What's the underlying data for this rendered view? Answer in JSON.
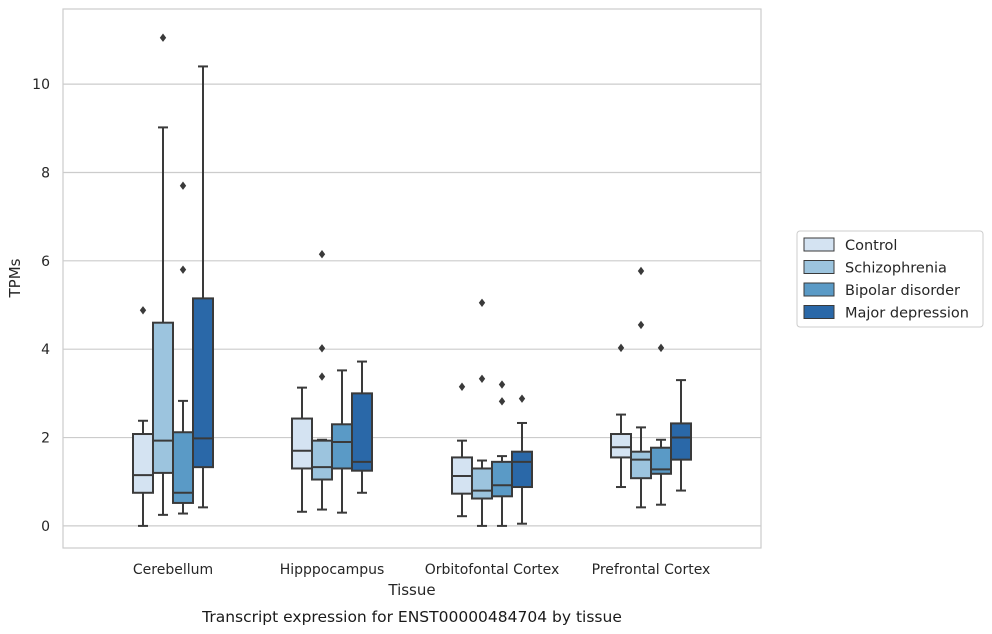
{
  "chart_data": {
    "type": "boxplot",
    "caption": "Transcript expression for ENST00000484704 by tissue",
    "xlabel": "Tissue",
    "ylabel": "TPMs",
    "ylim": [
      -0.5,
      11.7
    ],
    "yticks": [
      0,
      2,
      4,
      6,
      8,
      10
    ],
    "grid": true,
    "legend_position": "right",
    "categories": [
      "Cerebellum",
      "Hipppocampus",
      "Orbitofontal Cortex",
      "Prefrontal Cortex"
    ],
    "series": [
      {
        "name": "Control",
        "color": "#d4e3f2",
        "boxes": [
          {
            "min": 0.0,
            "q1": 0.75,
            "median": 1.15,
            "q3": 2.08,
            "max": 2.38,
            "outliers": [
              4.88
            ]
          },
          {
            "min": 0.32,
            "q1": 1.3,
            "median": 1.7,
            "q3": 2.43,
            "max": 3.13,
            "outliers": []
          },
          {
            "min": 0.22,
            "q1": 0.73,
            "median": 1.13,
            "q3": 1.55,
            "max": 1.93,
            "outliers": [
              3.15
            ]
          },
          {
            "min": 0.88,
            "q1": 1.55,
            "median": 1.78,
            "q3": 2.08,
            "max": 2.52,
            "outliers": [
              4.03
            ]
          }
        ]
      },
      {
        "name": "Schizophrenia",
        "color": "#9cc4de",
        "boxes": [
          {
            "min": 0.25,
            "q1": 1.2,
            "median": 1.93,
            "q3": 4.6,
            "max": 9.02,
            "outliers": [
              11.05
            ]
          },
          {
            "min": 0.37,
            "q1": 1.05,
            "median": 1.33,
            "q3": 1.93,
            "max": 1.95,
            "outliers": [
              6.15,
              4.02,
              3.38
            ]
          },
          {
            "min": 0.0,
            "q1": 0.62,
            "median": 0.8,
            "q3": 1.3,
            "max": 1.48,
            "outliers": [
              5.05,
              3.33
            ]
          },
          {
            "min": 0.42,
            "q1": 1.08,
            "median": 1.5,
            "q3": 1.68,
            "max": 2.23,
            "outliers": [
              5.77,
              4.55
            ]
          }
        ]
      },
      {
        "name": "Bipolar disorder",
        "color": "#5a9ac6",
        "boxes": [
          {
            "min": 0.28,
            "q1": 0.52,
            "median": 0.75,
            "q3": 2.12,
            "max": 2.83,
            "outliers": [
              7.7,
              5.8
            ]
          },
          {
            "min": 0.3,
            "q1": 1.3,
            "median": 1.9,
            "q3": 2.3,
            "max": 3.52,
            "outliers": []
          },
          {
            "min": 0.0,
            "q1": 0.67,
            "median": 0.92,
            "q3": 1.45,
            "max": 1.58,
            "outliers": [
              3.2,
              2.82
            ]
          },
          {
            "min": 0.48,
            "q1": 1.18,
            "median": 1.28,
            "q3": 1.77,
            "max": 1.95,
            "outliers": [
              4.03
            ]
          }
        ]
      },
      {
        "name": "Major depression",
        "color": "#2a68a8",
        "boxes": [
          {
            "min": 0.42,
            "q1": 1.33,
            "median": 1.98,
            "q3": 5.15,
            "max": 10.4,
            "outliers": []
          },
          {
            "min": 0.75,
            "q1": 1.25,
            "median": 1.45,
            "q3": 3.0,
            "max": 3.72,
            "outliers": []
          },
          {
            "min": 0.05,
            "q1": 0.88,
            "median": 1.45,
            "q3": 1.68,
            "max": 2.33,
            "outliers": [
              2.88
            ]
          },
          {
            "min": 0.8,
            "q1": 1.5,
            "median": 2.0,
            "q3": 2.32,
            "max": 3.3,
            "outliers": []
          }
        ]
      }
    ]
  }
}
